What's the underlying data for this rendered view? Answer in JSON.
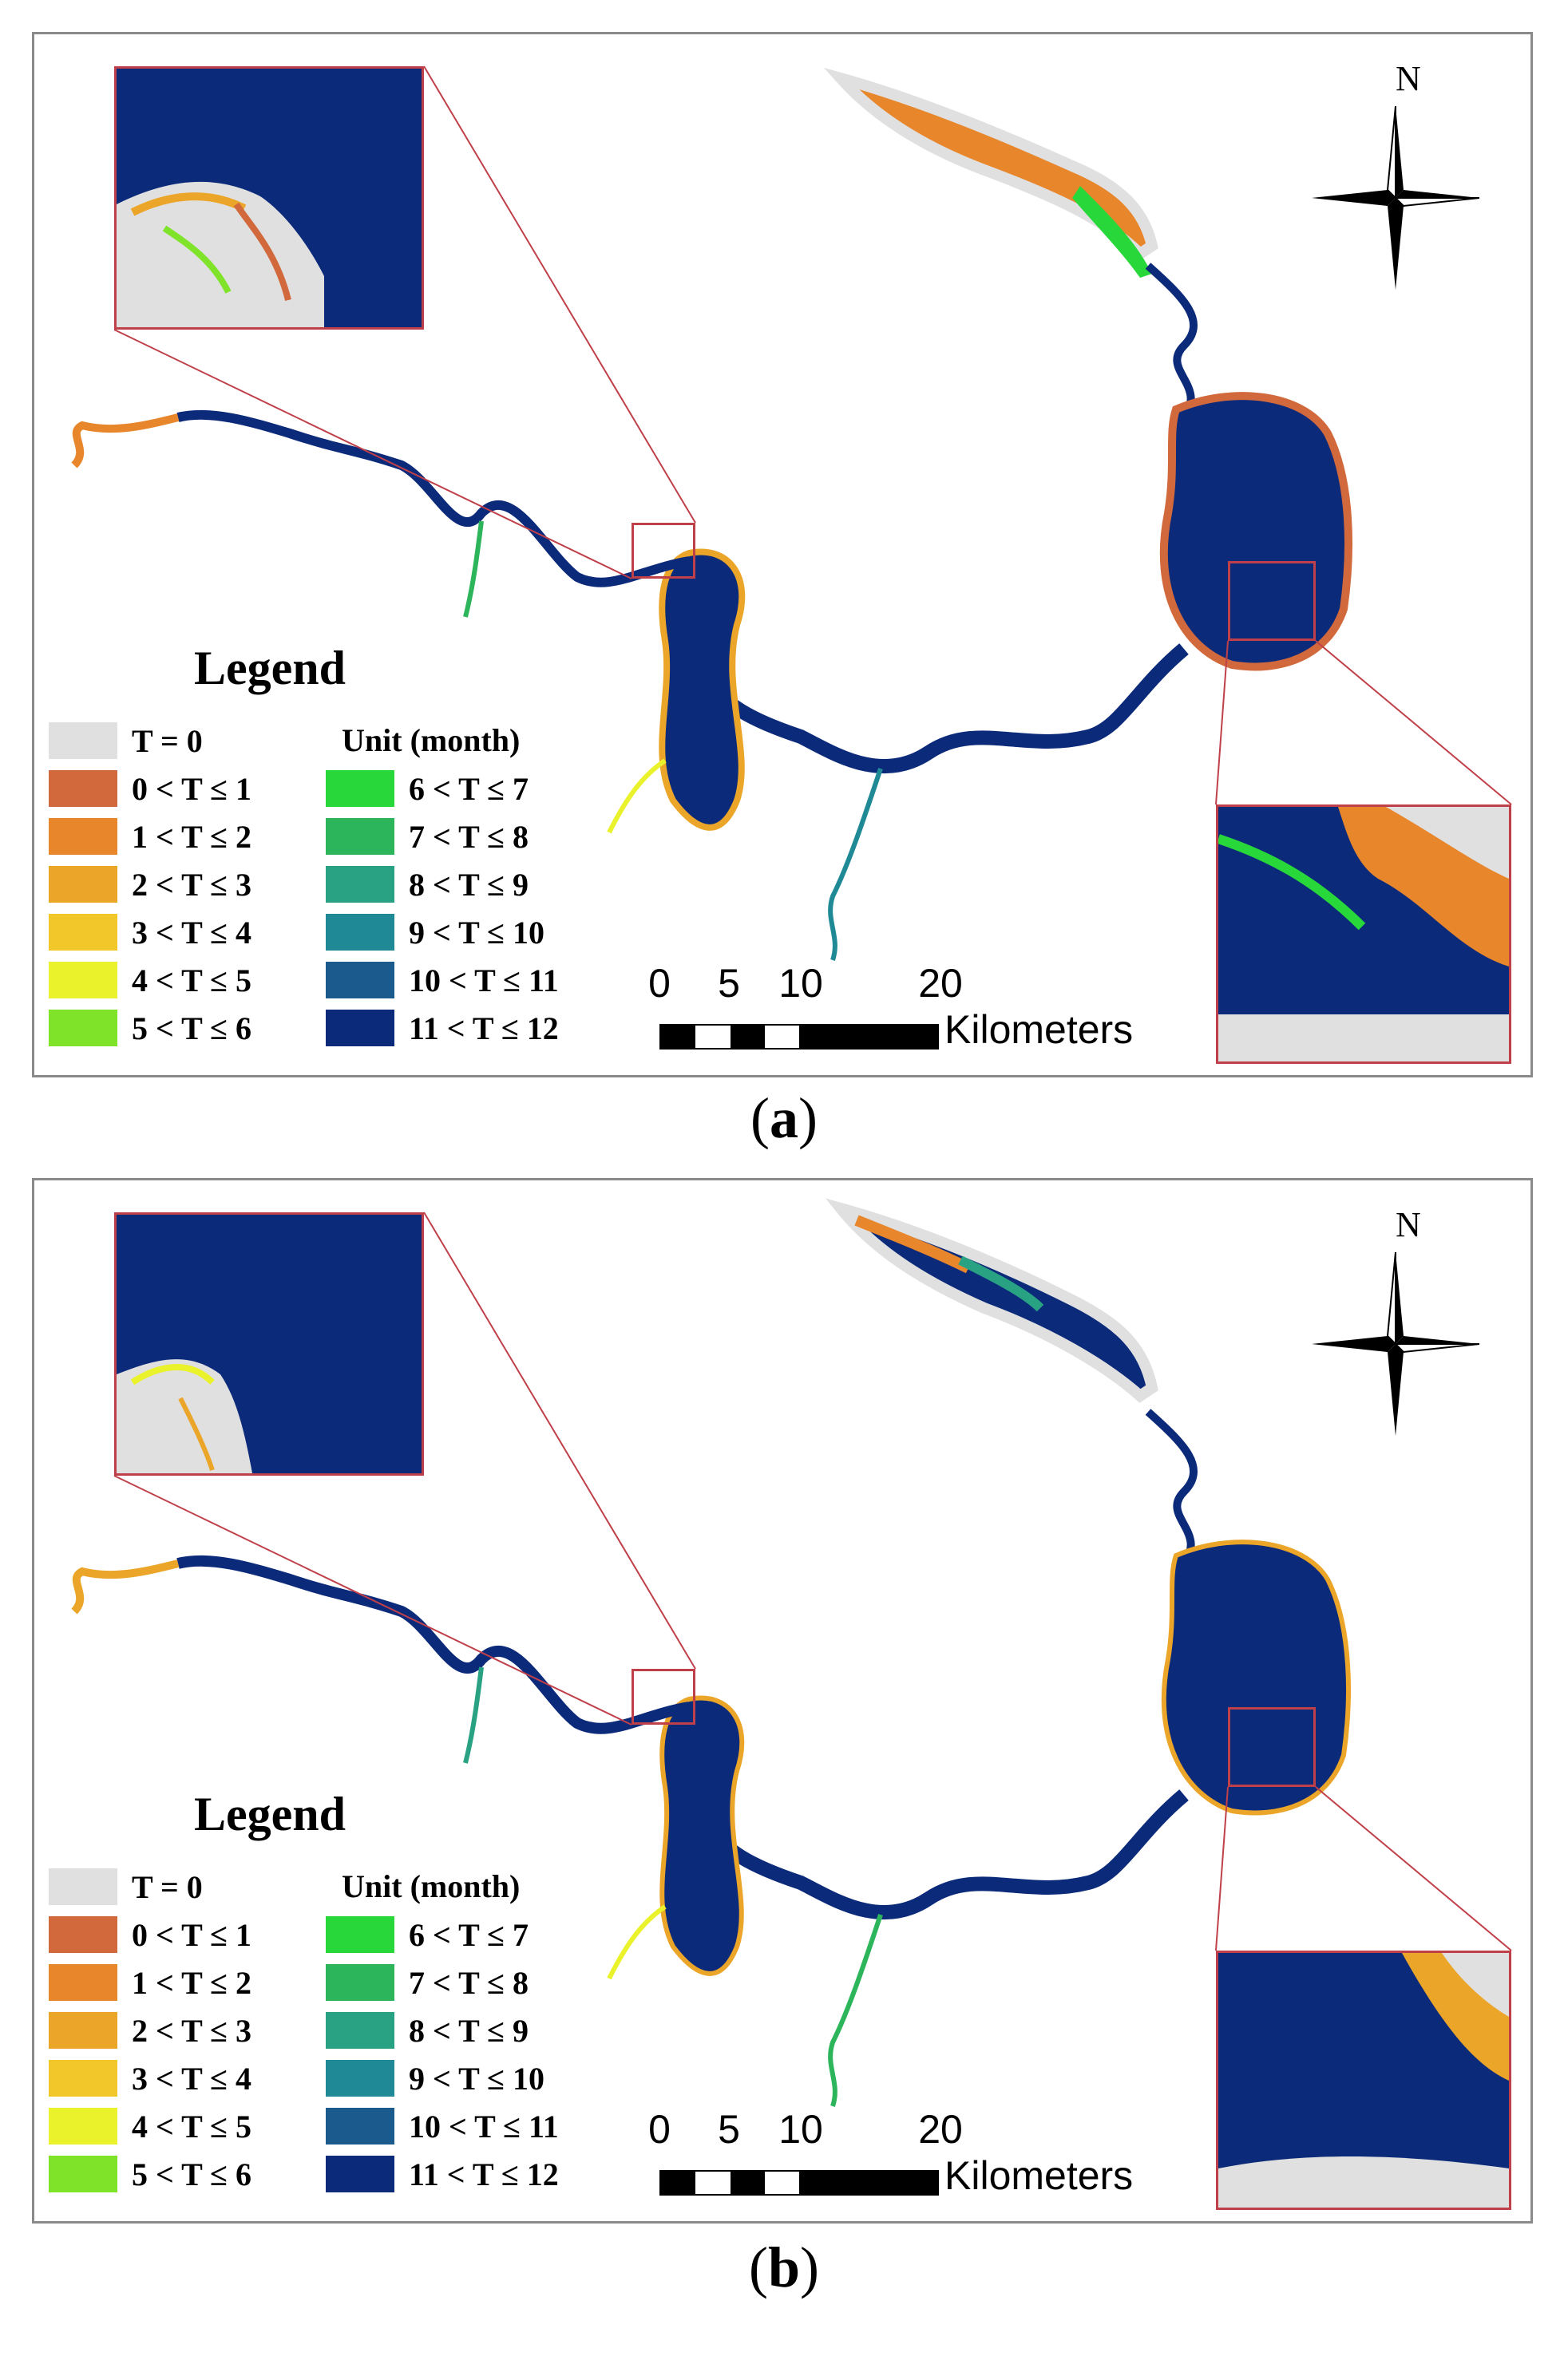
{
  "panels": [
    {
      "id": "a",
      "caption_letter": "a",
      "north_label": "N",
      "legend": {
        "title": "Legend",
        "unit_label": "Unit (month)",
        "left_items": [
          {
            "label": "T = 0",
            "color": "#e0e0e0"
          },
          {
            "label": "0 < T ≤ 1",
            "color": "#d2693c"
          },
          {
            "label": "1 < T ≤ 2",
            "color": "#e8862c"
          },
          {
            "label": "2 < T ≤ 3",
            "color": "#eba528"
          },
          {
            "label": "3 < T ≤ 4",
            "color": "#f2c72a"
          },
          {
            "label": "4 < T ≤ 5",
            "color": "#e9f22a"
          },
          {
            "label": "5 < T ≤ 6",
            "color": "#7fe32a"
          }
        ],
        "right_items": [
          {
            "label": "6 < T ≤ 7",
            "color": "#28d83a"
          },
          {
            "label": "7 < T ≤ 8",
            "color": "#2cb55a"
          },
          {
            "label": "8 < T ≤ 9",
            "color": "#29a283"
          },
          {
            "label": "9 < T ≤ 10",
            "color": "#1f8a96"
          },
          {
            "label": "10 < T ≤ 11",
            "color": "#1b5a8c"
          },
          {
            "label": "11 < T ≤ 12",
            "color": "#0c2a7a"
          }
        ]
      },
      "scale": {
        "ticks": [
          "0",
          "5",
          "10",
          "20"
        ],
        "unit": "Kilometers"
      }
    },
    {
      "id": "b",
      "caption_letter": "b",
      "north_label": "N",
      "legend": {
        "title": "Legend",
        "unit_label": "Unit (month)",
        "left_items": [
          {
            "label": "T = 0",
            "color": "#e0e0e0"
          },
          {
            "label": "0 < T ≤ 1",
            "color": "#d2693c"
          },
          {
            "label": "1 < T ≤ 2",
            "color": "#e8862c"
          },
          {
            "label": "2 < T ≤ 3",
            "color": "#eba528"
          },
          {
            "label": "3 < T ≤ 4",
            "color": "#f2c72a"
          },
          {
            "label": "4 < T ≤ 5",
            "color": "#e9f22a"
          },
          {
            "label": "5 < T ≤ 6",
            "color": "#7fe32a"
          }
        ],
        "right_items": [
          {
            "label": "6 < T ≤ 7",
            "color": "#28d83a"
          },
          {
            "label": "7 < T ≤ 8",
            "color": "#2cb55a"
          },
          {
            "label": "8 < T ≤ 9",
            "color": "#29a283"
          },
          {
            "label": "9 < T ≤ 10",
            "color": "#1f8a96"
          },
          {
            "label": "10 < T ≤ 11",
            "color": "#1b5a8c"
          },
          {
            "label": "11 < T ≤ 12",
            "color": "#0c2a7a"
          }
        ]
      },
      "scale": {
        "ticks": [
          "0",
          "5",
          "10",
          "20"
        ],
        "unit": "Kilometers"
      }
    }
  ]
}
